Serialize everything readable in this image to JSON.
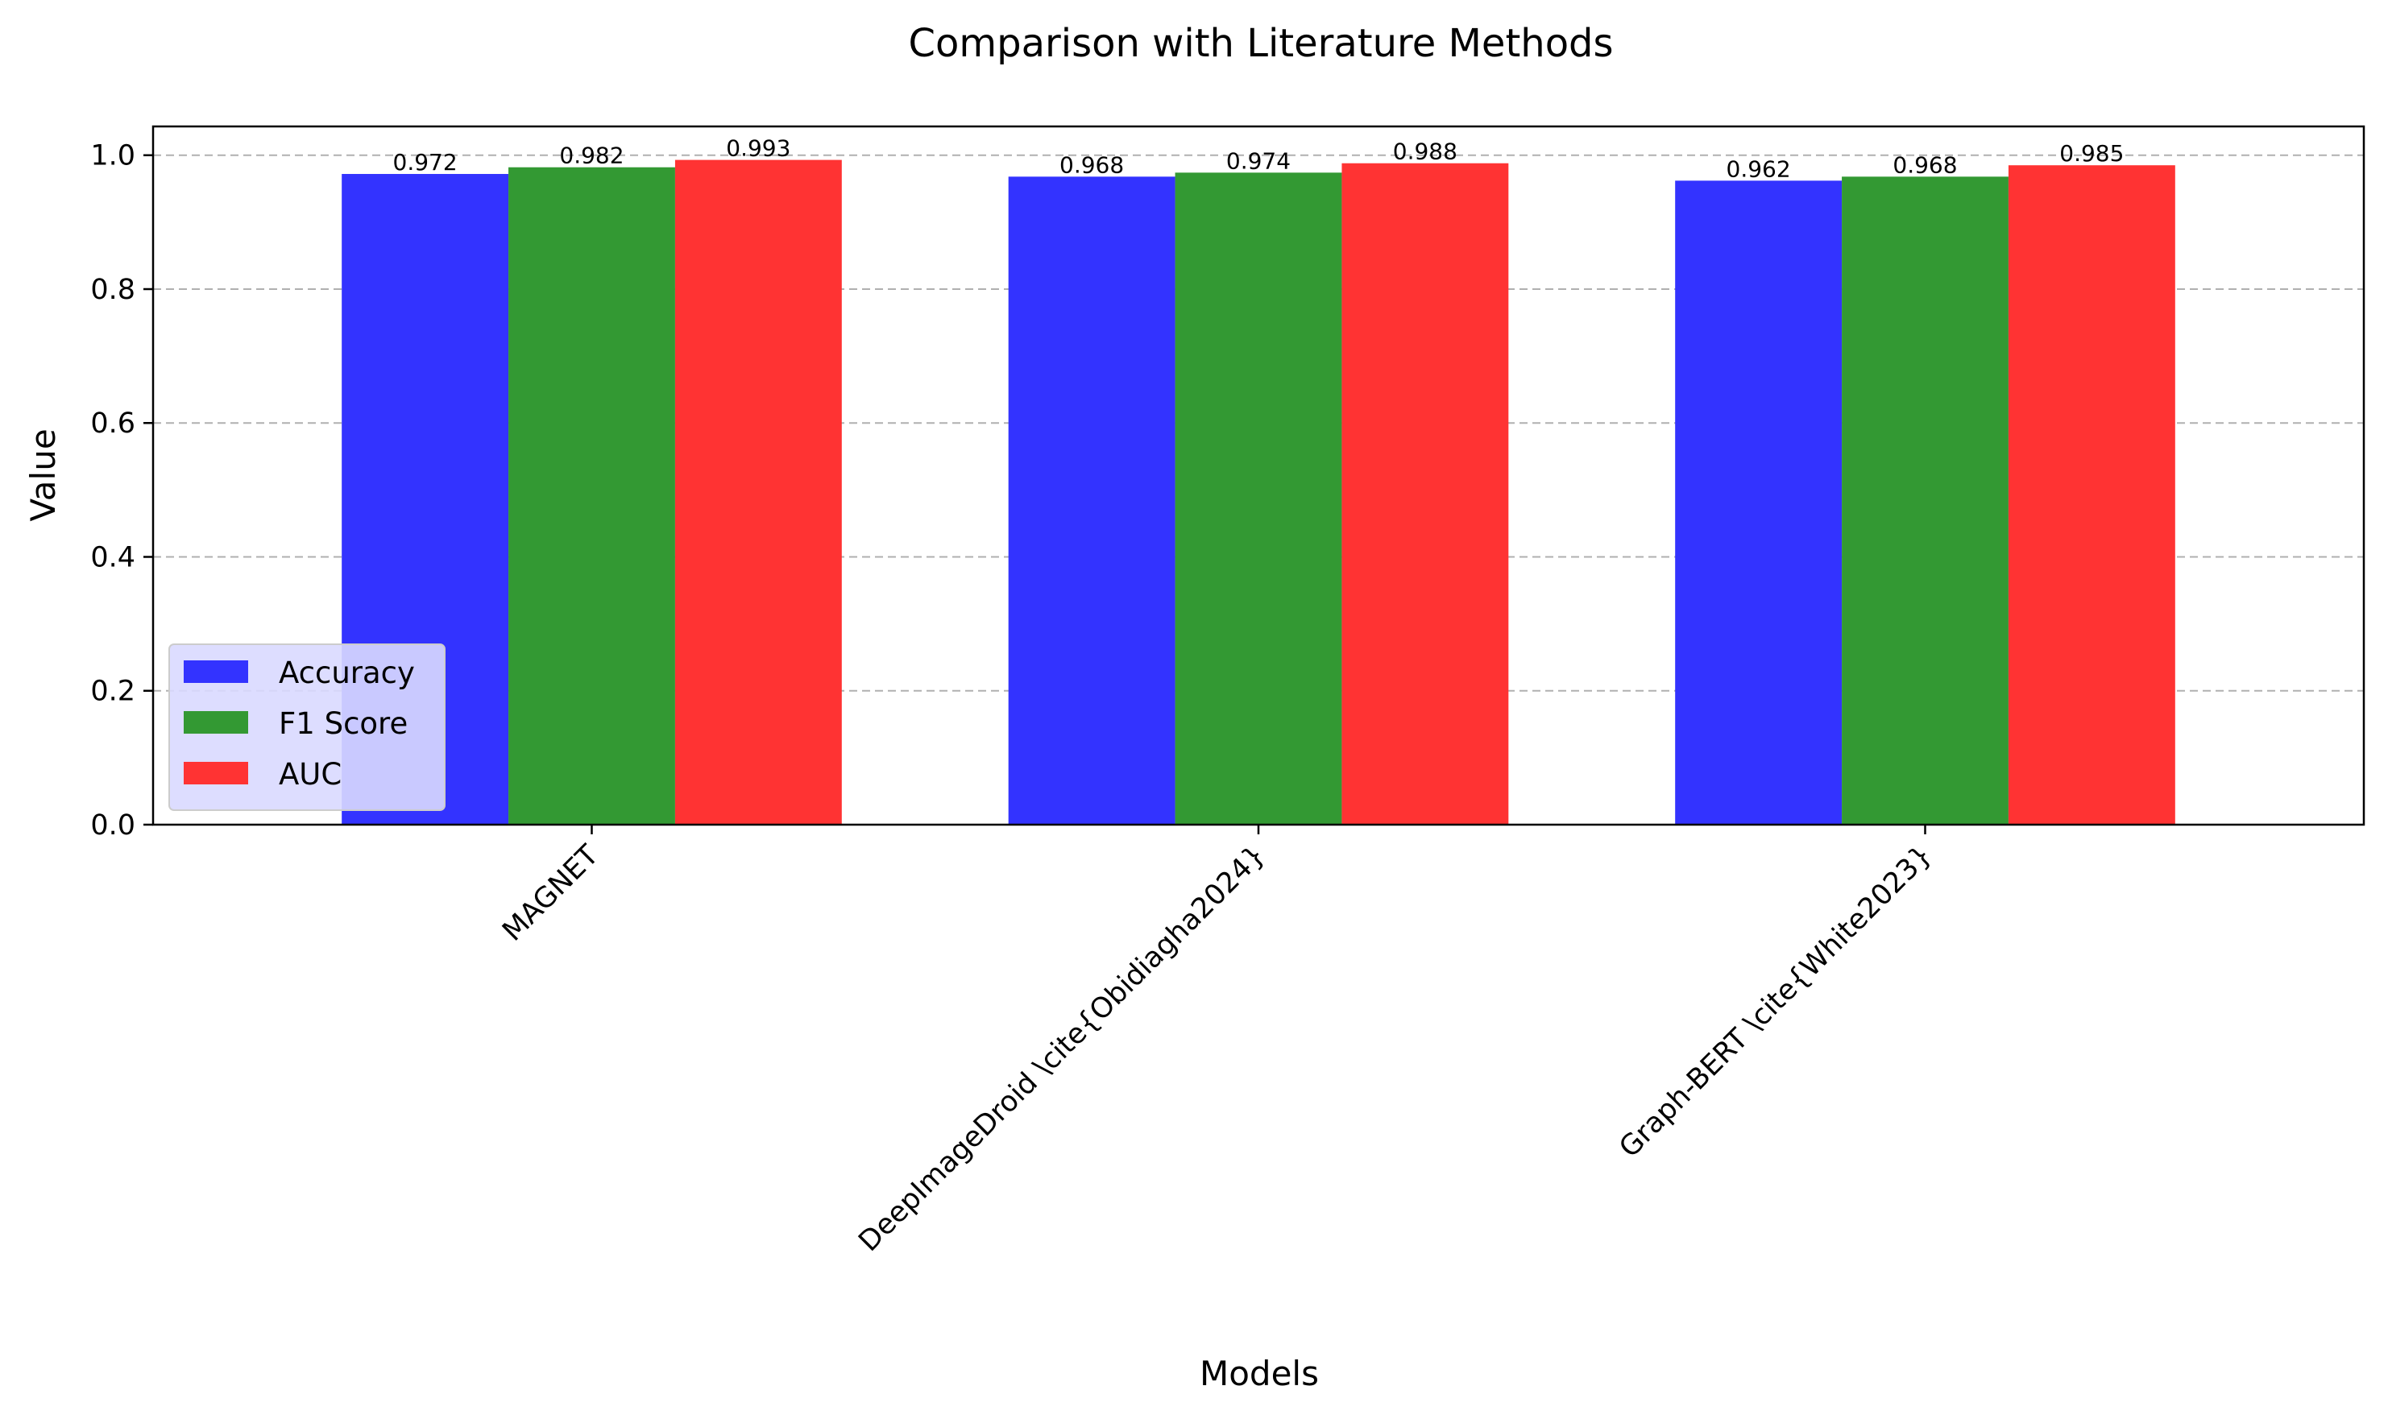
{
  "chart_data": {
    "type": "bar",
    "title": "Comparison with Literature Methods",
    "xlabel": "Models",
    "ylabel": "Value",
    "categories": [
      "MAGNET",
      "DeepImageDroid \\cite{Obidiagha2024}",
      "Graph-BERT \\cite{White2023}"
    ],
    "series": [
      {
        "name": "Accuracy",
        "values": [
          0.972,
          0.968,
          0.962
        ],
        "color": "#3333ff"
      },
      {
        "name": "F1 Score",
        "values": [
          0.982,
          0.974,
          0.968
        ],
        "color": "#339933"
      },
      {
        "name": "AUC",
        "values": [
          0.993,
          0.988,
          0.985
        ],
        "color": "#ff3333"
      }
    ],
    "value_labels": [
      [
        "0.972",
        "0.968",
        "0.962"
      ],
      [
        "0.982",
        "0.974",
        "0.968"
      ],
      [
        "0.993",
        "0.988",
        "0.985"
      ]
    ],
    "ylim": [
      0,
      1.043
    ],
    "yticks": [
      0.0,
      0.2,
      0.4,
      0.6,
      0.8,
      1.0
    ],
    "ytick_labels": [
      "0.0",
      "0.2",
      "0.4",
      "0.6",
      "0.8",
      "1.0"
    ],
    "grid": "y-dashed",
    "legend_position": "lower-left",
    "legend_face_color": "#d9d9ff"
  }
}
